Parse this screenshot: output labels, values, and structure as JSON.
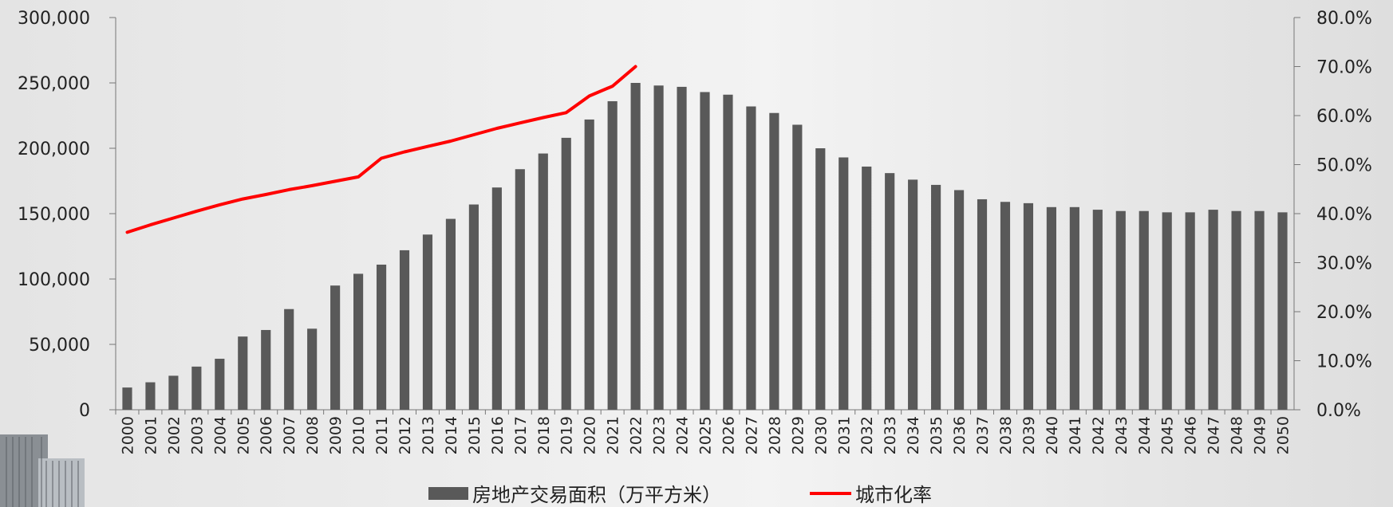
{
  "chart_data": {
    "type": "bar",
    "categories": [
      "2000",
      "2001",
      "2002",
      "2003",
      "2004",
      "2005",
      "2006",
      "2007",
      "2008",
      "2009",
      "2010",
      "2011",
      "2012",
      "2013",
      "2014",
      "2015",
      "2016",
      "2017",
      "2018",
      "2019",
      "2020",
      "2021",
      "2022",
      "2023",
      "2024",
      "2025",
      "2026",
      "2027",
      "2028",
      "2029",
      "2030",
      "2031",
      "2032",
      "2033",
      "2034",
      "2035",
      "2036",
      "2037",
      "2038",
      "2039",
      "2040",
      "2041",
      "2042",
      "2043",
      "2044",
      "2045",
      "2046",
      "2047",
      "2048",
      "2049",
      "2050"
    ],
    "series": [
      {
        "name": "房地产交易面积（万平方米）",
        "type": "bar",
        "axis": "left",
        "color": "#595959",
        "values": [
          17000,
          21000,
          26000,
          33000,
          39000,
          56000,
          61000,
          77000,
          62000,
          95000,
          104000,
          111000,
          122000,
          134000,
          146000,
          157000,
          170000,
          184000,
          196000,
          208000,
          222000,
          236000,
          250000,
          248000,
          247000,
          243000,
          241000,
          232000,
          227000,
          218000,
          200000,
          193000,
          186000,
          181000,
          176000,
          172000,
          168000,
          161000,
          159000,
          158000,
          155000,
          155000,
          153000,
          152000,
          152000,
          151000,
          151000,
          153000,
          152000,
          152000,
          151000
        ]
      },
      {
        "name": "城市化率",
        "type": "line",
        "axis": "right",
        "color": "#ff0000",
        "values": [
          36.2,
          37.7,
          39.1,
          40.5,
          41.8,
          43.0,
          43.9,
          44.9,
          45.7,
          46.6,
          47.5,
          51.3,
          52.6,
          53.7,
          54.8,
          56.1,
          57.4,
          58.5,
          59.6,
          60.6,
          64.0,
          66.0,
          70.0,
          null,
          null,
          null,
          null,
          null,
          null,
          null,
          null,
          null,
          null,
          null,
          null,
          null,
          null,
          null,
          null,
          null,
          null,
          null,
          null,
          null,
          null,
          null,
          null,
          null,
          null,
          null,
          null
        ]
      }
    ],
    "y_left": {
      "ylim": [
        0,
        300000
      ],
      "ticks": [
        "300,000",
        "250,000",
        "200,000",
        "150,000",
        "100,000",
        "50,000",
        "0"
      ]
    },
    "y_right": {
      "ylim": [
        0,
        80
      ],
      "ticks": [
        "80.0%",
        "70.0%",
        "60.0%",
        "50.0%",
        "40.0%",
        "30.0%",
        "20.0%",
        "10.0%",
        "0.0%"
      ]
    },
    "legend_position": "bottom-center",
    "grid": false
  }
}
